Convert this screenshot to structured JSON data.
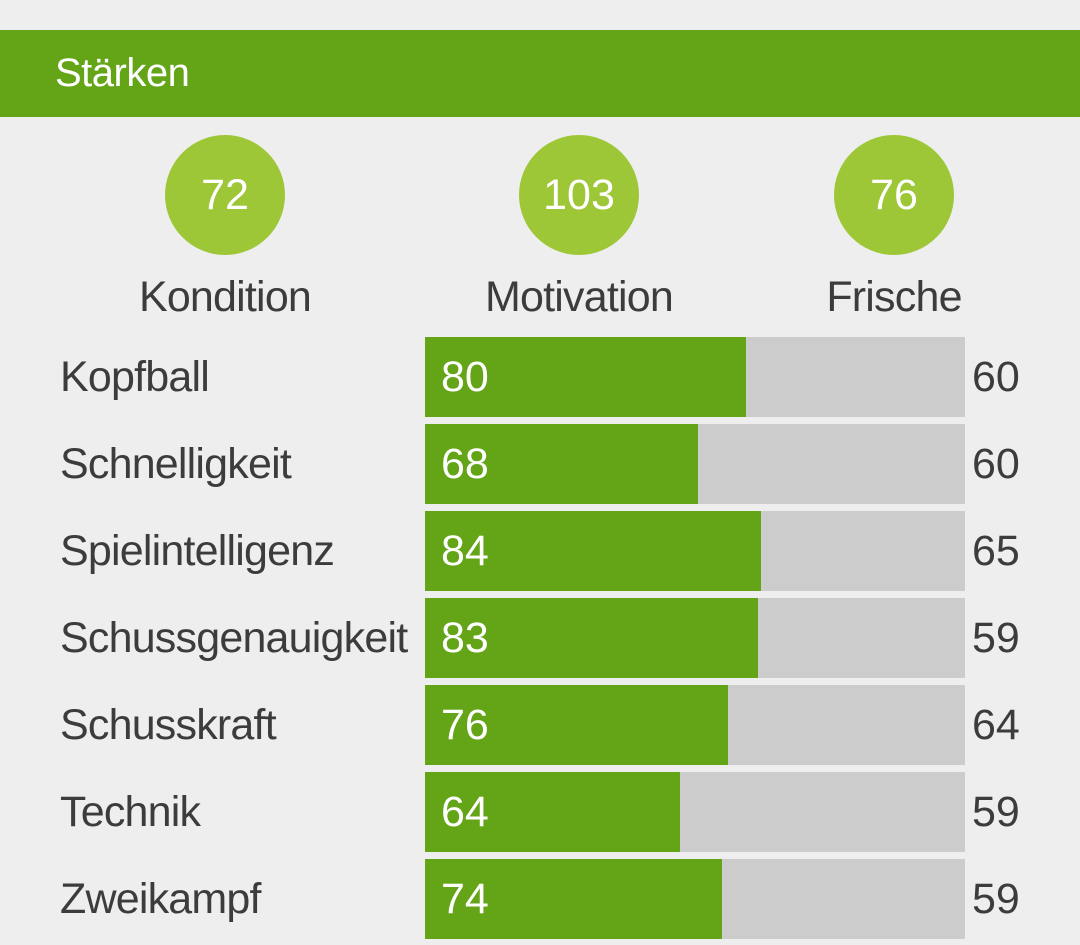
{
  "header": {
    "title": "Stärken"
  },
  "stats": [
    {
      "value": "72",
      "label": "Kondition"
    },
    {
      "value": "103",
      "label": "Motivation"
    },
    {
      "value": "76",
      "label": "Frische"
    }
  ],
  "skills": [
    {
      "name": "Kopfball",
      "value": "80",
      "fill_percent": 59.4,
      "potential": "60"
    },
    {
      "name": "Schnelligkeit",
      "value": "68",
      "fill_percent": 50.6,
      "potential": "60"
    },
    {
      "name": "Spielintelligenz",
      "value": "84",
      "fill_percent": 62.2,
      "potential": "65"
    },
    {
      "name": "Schussgenauigkeit",
      "value": "83",
      "fill_percent": 61.7,
      "potential": "59"
    },
    {
      "name": "Schusskraft",
      "value": "76",
      "fill_percent": 56.1,
      "potential": "64"
    },
    {
      "name": "Technik",
      "value": "64",
      "fill_percent": 47.2,
      "potential": "59"
    },
    {
      "name": "Zweikampf",
      "value": "74",
      "fill_percent": 55.0,
      "potential": "59"
    }
  ],
  "colors": {
    "header_background": "#64a518",
    "stat_circle": "#9dc737",
    "bar_fill": "#64a518",
    "bar_track": "#cccccc",
    "page_background": "#eeeeee"
  }
}
